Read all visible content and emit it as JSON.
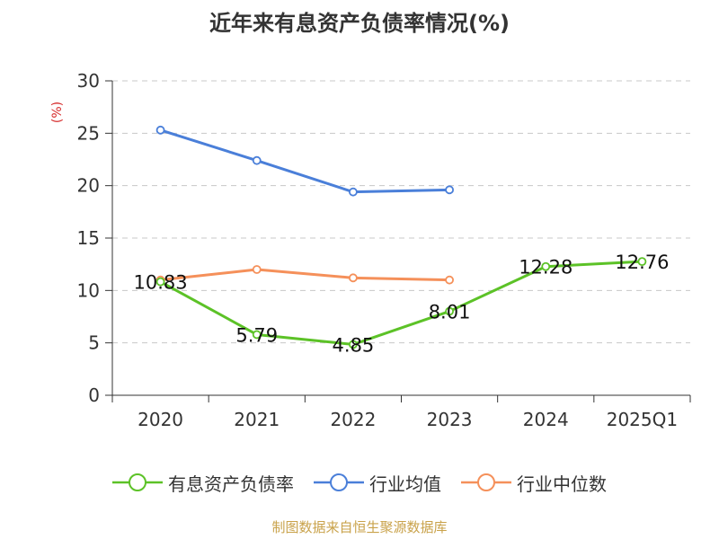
{
  "title": "近年来有息资产负债率情况(%)",
  "source": "制图数据来自恒生聚源数据库",
  "chart_data": {
    "type": "line",
    "title": "近年来有息资产负债率情况(%)",
    "ylabel": "(%)",
    "xlabel": "",
    "categories": [
      "2020",
      "2021",
      "2022",
      "2023",
      "2024",
      "2025Q1"
    ],
    "ylim": [
      0,
      30
    ],
    "yticks": [
      0,
      5,
      10,
      15,
      20,
      25,
      30
    ],
    "grid": true,
    "legend_position": "bottom",
    "series": [
      {
        "name": "有息资产负债率",
        "color": "#5cc227",
        "values": [
          10.83,
          5.79,
          4.85,
          8.01,
          12.28,
          12.76
        ],
        "labels": [
          "10.83",
          "5.79",
          "4.85",
          "8.01",
          "12.28",
          "12.76"
        ]
      },
      {
        "name": "行业均值",
        "color": "#4a7fd9",
        "values": [
          25.3,
          22.4,
          19.4,
          19.6,
          null,
          null
        ],
        "labels": []
      },
      {
        "name": "行业中位数",
        "color": "#f5905a",
        "values": [
          11.0,
          12.0,
          11.2,
          11.0,
          null,
          null
        ],
        "labels": []
      }
    ]
  }
}
